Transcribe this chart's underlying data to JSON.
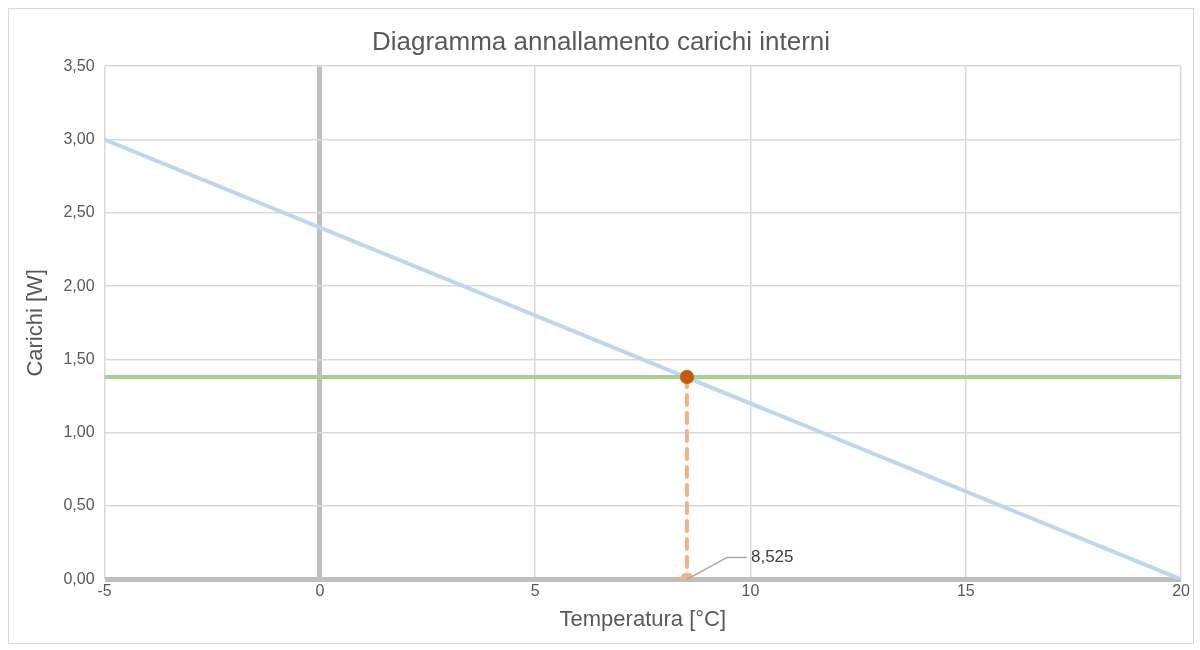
{
  "chart_data": {
    "type": "line",
    "title": "Diagramma annallamento carichi interni",
    "xlabel": "Temperatura [°C]",
    "ylabel": "Carichi [W]",
    "series": [
      {
        "color": "#bdd7ee",
        "x": [
          -5,
          20
        ],
        "values": [
          3,
          0
        ]
      },
      {
        "color": "#a9d18e",
        "x": [
          -5,
          20
        ],
        "values": [
          1.38,
          1.38
        ]
      },
      {
        "color": "#f4b183",
        "line_style": "dashed",
        "marker": "circle",
        "x": [
          8.525,
          8.525
        ],
        "values": [
          1.38,
          0
        ]
      },
      {
        "type": "scatter",
        "color": "#c55a11",
        "marker": "circle",
        "x": [
          8.525
        ],
        "values": [
          1.38
        ]
      }
    ],
    "xlim": [
      -5,
      20
    ],
    "xticks": [
      -5,
      0,
      5,
      10,
      15,
      20
    ],
    "ylim": [
      0,
      3.5
    ],
    "yticks": [
      {
        "value": 0,
        "label": "0,00"
      },
      {
        "value": 0.5,
        "label": "0,50"
      },
      {
        "value": 1,
        "label": "1,00"
      },
      {
        "value": 1.5,
        "label": "1,50"
      },
      {
        "value": 2,
        "label": "2,00"
      },
      {
        "value": 2.5,
        "label": "2,50"
      },
      {
        "value": 3,
        "label": "3,00"
      },
      {
        "value": 3.5,
        "label": "3,50"
      }
    ],
    "grid": true,
    "legend": false,
    "marker": "none",
    "line_style": "solid",
    "annotations": [
      {
        "text": "8,525",
        "x": 8.525,
        "y": 0
      }
    ]
  }
}
